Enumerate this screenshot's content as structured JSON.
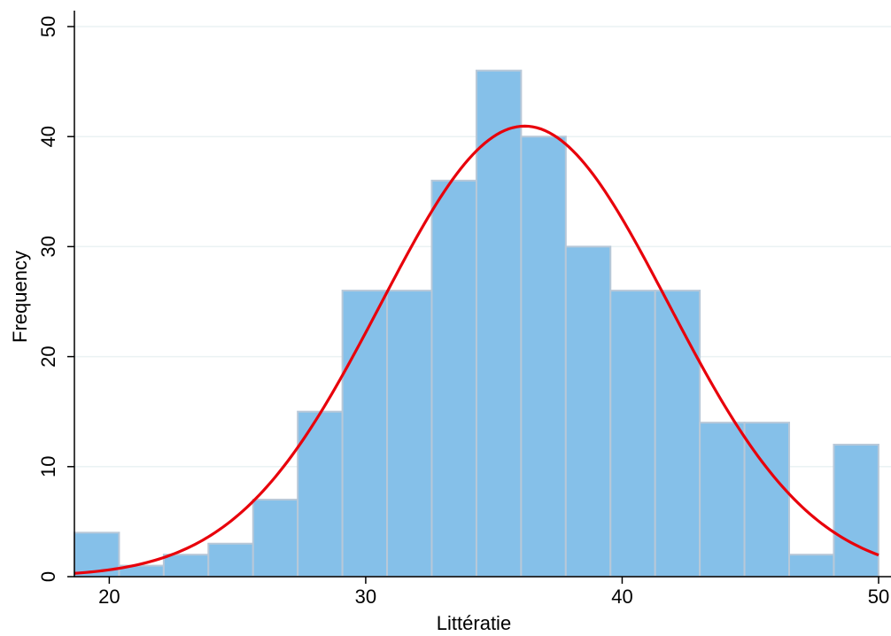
{
  "chart_data": {
    "type": "bar",
    "subtype": "histogram",
    "title": "",
    "xlabel": "Littératie",
    "ylabel": "Frequency",
    "xlim": [
      18.64,
      50
    ],
    "ylim": [
      0,
      50
    ],
    "xticks": [
      20,
      30,
      40,
      50
    ],
    "yticks": [
      0,
      10,
      20,
      30,
      40,
      50
    ],
    "grid": true,
    "bin_start": 18.64,
    "bin_width": 1.742,
    "values": [
      4,
      1,
      2,
      3,
      7,
      15,
      26,
      26,
      36,
      46,
      40,
      30,
      26,
      26,
      14,
      14,
      2,
      12
    ],
    "normal_curve": {
      "mean": 36.2,
      "sd": 5.6
    },
    "colors": {
      "bar_fill": "#85c0e9",
      "bar_edge": "#b8c8d8",
      "curve": "#e8000b",
      "grid": "#eaf2f3"
    }
  }
}
